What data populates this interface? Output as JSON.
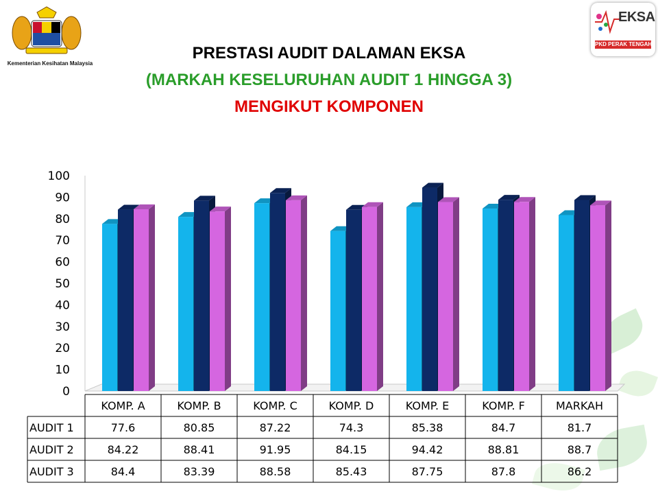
{
  "header": {
    "title_line1": "PRESTASI AUDIT DALAMAN EKSA",
    "title_line2": "(MARKAH KESELURUHAN AUDIT 1 HINGGA 3)",
    "title_line3": "MENGIKUT KOMPONEN",
    "title_colors": [
      "#000000",
      "#2a9d2a",
      "#e00000"
    ]
  },
  "logos": {
    "left_caption": "Kementerian Kesihatan Malaysia",
    "right_text": "EKSA",
    "right_band": "PKD PERAK TENGAH"
  },
  "chart_data": {
    "type": "bar",
    "categories": [
      "KOMP. A",
      "KOMP. B",
      "KOMP. C",
      "KOMP. D",
      "KOMP. E",
      "KOMP. F",
      "MARKAH"
    ],
    "series": [
      {
        "name": "AUDIT 1",
        "values": [
          77.6,
          80.85,
          87.22,
          74.3,
          85.38,
          84.7,
          81.7
        ],
        "color": "#14b4ec"
      },
      {
        "name": "AUDIT 2",
        "values": [
          84.22,
          88.41,
          91.95,
          84.15,
          94.42,
          88.81,
          88.7
        ],
        "color": "#0d2a66"
      },
      {
        "name": "AUDIT 3",
        "values": [
          84.4,
          83.39,
          88.58,
          85.43,
          87.75,
          87.8,
          86.2
        ],
        "color": "#d566e0"
      }
    ],
    "ylim": [
      0,
      100
    ],
    "yticks": [
      0,
      10,
      20,
      30,
      40,
      50,
      60,
      70,
      80,
      90,
      100
    ],
    "grid": false,
    "bar_style": "3d",
    "data_table": true
  }
}
